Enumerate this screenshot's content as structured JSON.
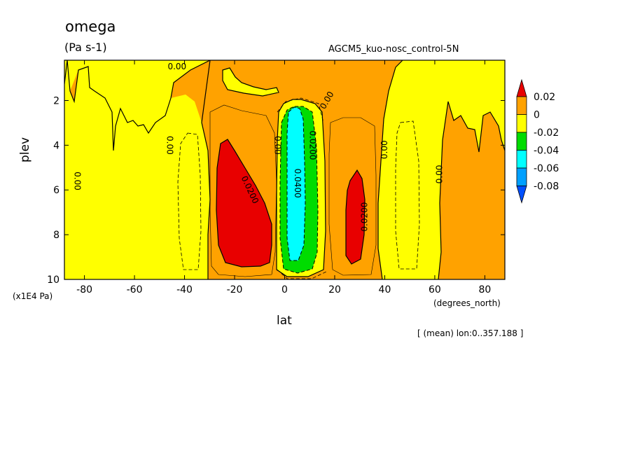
{
  "chart_data": {
    "type": "contour",
    "title": "omega",
    "units": "(Pa s-1)",
    "experiment": "AGCM5_kuo-nosc_control-5N",
    "xlabel": "lat",
    "x_units": "(degrees_north)",
    "ylabel": "plev",
    "y_units": "(x1E4 Pa)",
    "averaging_note": "[ (mean) lon:0..357.188 ]",
    "xlim": [
      -88,
      88
    ],
    "ylim": [
      10,
      0.2
    ],
    "xticks": [
      -80,
      -60,
      -40,
      -20,
      0,
      20,
      40,
      60,
      80
    ],
    "yticks": [
      2,
      4,
      6,
      8,
      10
    ],
    "contour_labels": [
      {
        "text": "0.00",
        "lat": -46,
        "plev": 4.0,
        "rotation": 90
      },
      {
        "text": "0.00",
        "lat": -83,
        "plev": 5.6,
        "rotation": 90
      },
      {
        "text": "0.00",
        "lat": -43,
        "plev": 0.5,
        "rotation": 0
      },
      {
        "text": "0.0200",
        "lat": -14,
        "plev": 6.0,
        "rotation": 65
      },
      {
        "text": "0.00",
        "lat": -3,
        "plev": 4.0,
        "rotation": 90
      },
      {
        "text": "0.0400",
        "lat": 5,
        "plev": 5.7,
        "rotation": 90
      },
      {
        "text": "0.0200",
        "lat": 11,
        "plev": 4.0,
        "rotation": 90
      },
      {
        "text": "0.00",
        "lat": 17,
        "plev": 2.0,
        "rotation": -60
      },
      {
        "text": "0.0200",
        "lat": 32,
        "plev": 7.2,
        "rotation": -90
      },
      {
        "text": "0.00",
        "lat": 40,
        "plev": 4.2,
        "rotation": -90
      },
      {
        "text": "0.00",
        "lat": 62,
        "plev": 5.3,
        "rotation": -90
      }
    ],
    "colorbar": {
      "levels": [
        "0.02",
        "0",
        "-0.02",
        "-0.04",
        "-0.06",
        "-0.08"
      ],
      "colors": [
        "#e80000",
        "#ffa200",
        "#ffff00",
        "#00dc00",
        "#00ffff",
        "#00a0ff",
        "#0050ff"
      ]
    }
  }
}
